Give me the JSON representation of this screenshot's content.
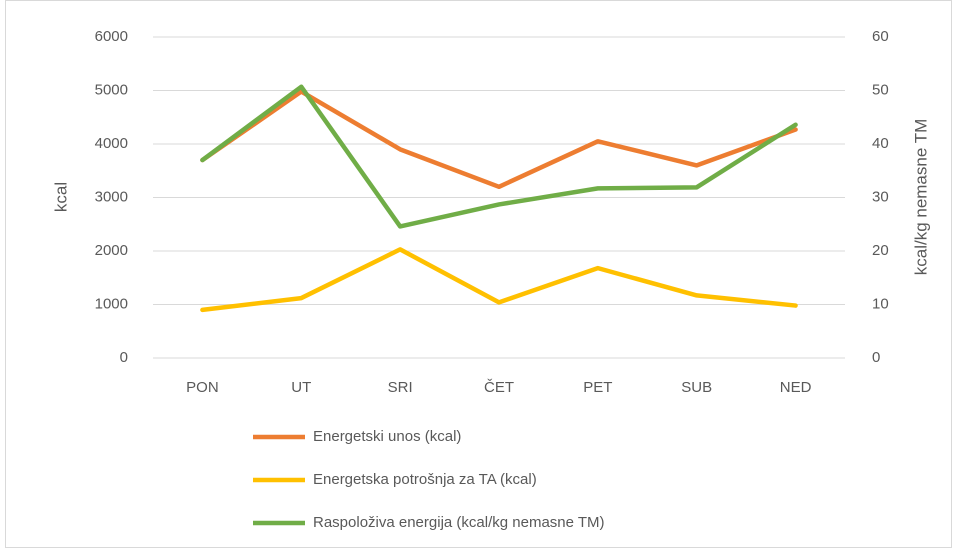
{
  "chart_data": {
    "type": "line",
    "categories": [
      "PON",
      "UT",
      "SRI",
      "ČET",
      "PET",
      "SUB",
      "NED"
    ],
    "series": [
      {
        "name": "Energetski unos (kcal)",
        "color": "#ed7d31",
        "values": [
          3700,
          4980,
          3900,
          3200,
          4050,
          3600,
          4270
        ]
      },
      {
        "name": "Energetska potrošnja za TA (kcal)",
        "color": "#ffc000",
        "values": [
          900,
          1120,
          2030,
          1040,
          1680,
          1170,
          980
        ]
      },
      {
        "name": "Raspoloživa energija (kcal/kg nemasne TM)",
        "color": "#70ad47",
        "values": [
          37,
          50.7,
          24.6,
          28.7,
          31.7,
          31.9,
          43.6
        ],
        "axis": "y2"
      }
    ],
    "ylabel": "kcal",
    "y2label": "kcal/kg nemasne TM",
    "ylim": [
      0,
      6000
    ],
    "yticks": [
      0,
      1000,
      2000,
      3000,
      4000,
      5000,
      6000
    ],
    "y2lim": [
      0,
      60
    ],
    "y2ticks": [
      0,
      10,
      20,
      30,
      40,
      50,
      60
    ],
    "grid": true,
    "legend": "bottom"
  }
}
